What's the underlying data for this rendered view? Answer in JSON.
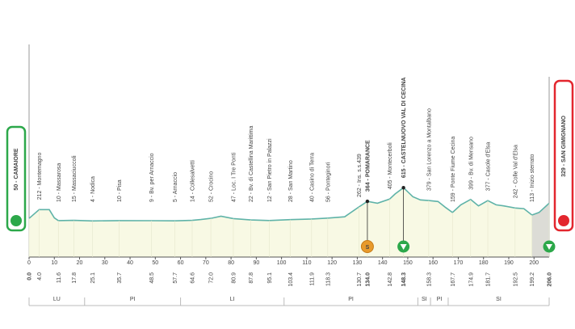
{
  "chart_data": {
    "type": "profile",
    "xlim": [
      0,
      206
    ],
    "ylim": [
      -660,
      3470
    ],
    "xticks": [
      0,
      10,
      20,
      30,
      40,
      50,
      60,
      70,
      80,
      90,
      100,
      110,
      120,
      130,
      140,
      150,
      160,
      170,
      180,
      190,
      200
    ],
    "line_color": "#5fb3a8",
    "fill_color": "#f8f9e4",
    "profile": {
      "x": [
        0,
        4,
        8,
        10,
        11.6,
        17.8,
        25.1,
        35.7,
        48.5,
        57.7,
        64.6,
        68,
        72,
        76,
        80.9,
        87.8,
        95.1,
        103.4,
        111.9,
        118.3,
        125,
        130.7,
        134,
        138,
        142.8,
        145,
        148.3,
        152,
        155,
        158.3,
        162,
        165,
        167.7,
        171,
        174.9,
        178,
        181.7,
        185,
        188,
        192.5,
        196,
        199.2,
        202,
        206
      ],
      "values": [
        50,
        212,
        212,
        60,
        10,
        15,
        4,
        10,
        9,
        5,
        14,
        30,
        52,
        90,
        47,
        22,
        12,
        28,
        40,
        56,
        80,
        262,
        364,
        330,
        405,
        500,
        615,
        450,
        390,
        379,
        360,
        250,
        159,
        300,
        399,
        280,
        377,
        300,
        280,
        242,
        230,
        113,
        160,
        329
      ]
    },
    "waypoints": [
      {
        "km": {
          "value": 0,
          "label": "0.0"
        },
        "label": "50 - CAMAIORE",
        "kind": "start"
      },
      {
        "km": {
          "value": 4,
          "label": "4.0"
        },
        "label": "212 - Montemagno",
        "kind": "normal"
      },
      {
        "km": 11.6,
        "label": "10 - Massarosa",
        "kind": "normal"
      },
      {
        "km": 17.8,
        "label": "15 - Massaciuccoli",
        "kind": "normal"
      },
      {
        "km": 25.1,
        "label": "4 - Nodica",
        "kind": "normal"
      },
      {
        "km": 35.7,
        "label": "10 - Pisa",
        "kind": "normal"
      },
      {
        "km": 48.5,
        "label": "9 - Bv. per Arnaccio",
        "kind": "normal"
      },
      {
        "km": 57.7,
        "label": "5 - Arnaccio",
        "kind": "normal"
      },
      {
        "km": 64.6,
        "label": "14 - Collesalvetti",
        "kind": "normal"
      },
      {
        "km": {
          "value": 72,
          "label": "72.0"
        },
        "label": "52 - Crocino",
        "kind": "normal"
      },
      {
        "km": 80.9,
        "label": "47 - Loc. I Tre Ponti",
        "kind": "normal"
      },
      {
        "km": 87.8,
        "label": "22 - Bv. di Castellina Marittima",
        "kind": "normal"
      },
      {
        "km": 95.1,
        "label": "12 - San Pietro in Palazzi",
        "kind": "normal"
      },
      {
        "km": 103.4,
        "label": "28 - San Martino",
        "kind": "normal"
      },
      {
        "km": 111.9,
        "label": "40 - Casino di Terra",
        "kind": "normal"
      },
      {
        "km": 118.3,
        "label": "56 - Ponteginori",
        "kind": "normal"
      },
      {
        "km": 130.7,
        "label": "262 - Ins. s.s.439",
        "kind": "normal"
      },
      {
        "km": {
          "value": 134,
          "label": "134.0"
        },
        "label": "364 - POMARANCE",
        "kind": "main"
      },
      {
        "km": 142.8,
        "label": "405 - Montecerboli",
        "kind": "normal"
      },
      {
        "km": 148.3,
        "label": "615 - CASTELNUOVO VAL DI CECINA",
        "kind": "main"
      },
      {
        "km": 158.3,
        "label": "379 - San Lorenzo a Montalbano",
        "kind": "normal"
      },
      {
        "km": 167.7,
        "label": "159 - Ponte Fiume Cecina",
        "kind": "normal"
      },
      {
        "km": 174.9,
        "label": "399 - Bv. di Mensano",
        "kind": "normal"
      },
      {
        "km": 181.7,
        "label": "377 - Casole d'Elsa",
        "kind": "normal"
      },
      {
        "km": 192.5,
        "label": "242 - Colle Val d'Elsa",
        "kind": "normal"
      },
      {
        "km": 199.2,
        "label": "113 - Inizio sterrato",
        "kind": "normal"
      },
      {
        "km": {
          "value": 206,
          "label": "206.0"
        },
        "label": "329 - SAN GIMIGNANO",
        "kind": "finish"
      }
    ],
    "sprint": {
      "km": 134,
      "label": "S"
    },
    "regions": [
      "LU",
      "PI",
      "LI",
      "PI",
      "SI",
      "PI",
      "SI"
    ]
  }
}
